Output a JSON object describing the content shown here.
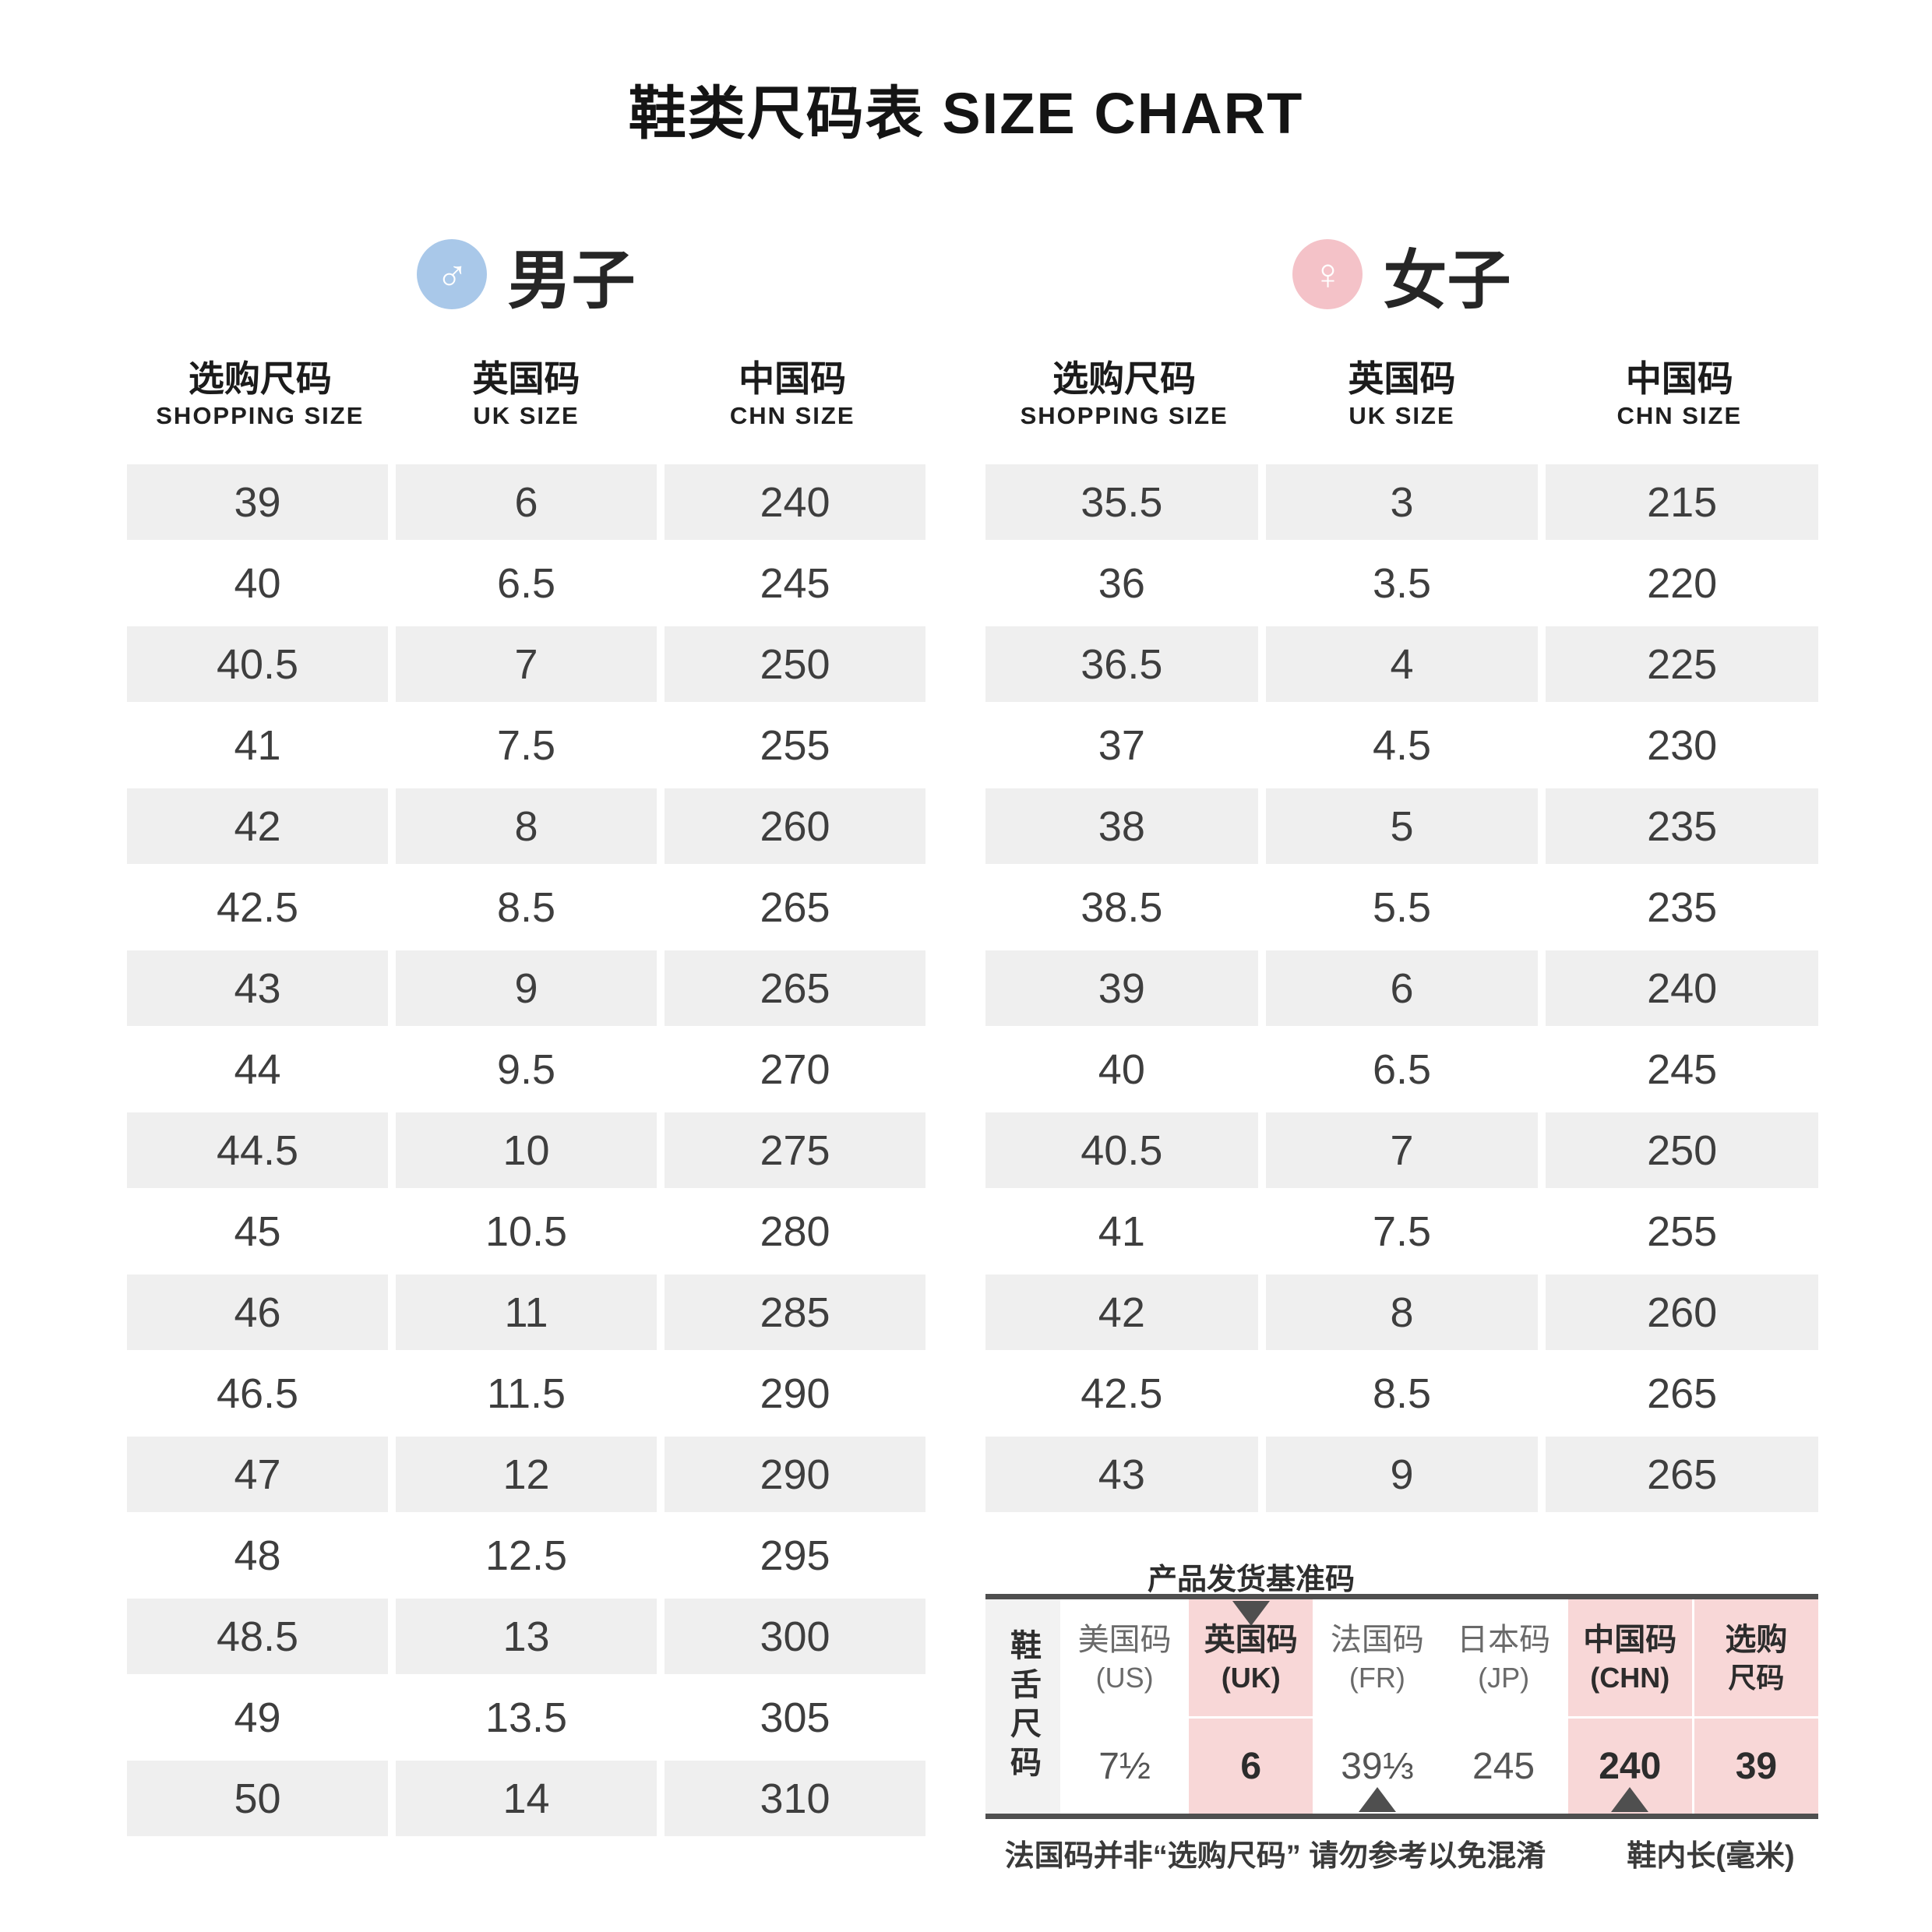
{
  "title": "鞋类尺码表 SIZE CHART",
  "colors": {
    "male_icon_bg": "#a9c8e9",
    "female_icon_bg": "#f4c2c8",
    "row_stripe": "#efefef",
    "ref_highlight_pink": "#f8d7d7",
    "ref_rowlabel_bg": "#f2f2f2",
    "rule_dark": "#4f4f4f"
  },
  "men": {
    "label": "男子",
    "symbol": "♂",
    "columns": [
      {
        "zh": "选购尺码",
        "en": "SHOPPING SIZE"
      },
      {
        "zh": "英国码",
        "en": "UK SIZE"
      },
      {
        "zh": "中国码",
        "en": "CHN SIZE"
      }
    ],
    "rows": [
      [
        "39",
        "6",
        "240"
      ],
      [
        "40",
        "6.5",
        "245"
      ],
      [
        "40.5",
        "7",
        "250"
      ],
      [
        "41",
        "7.5",
        "255"
      ],
      [
        "42",
        "8",
        "260"
      ],
      [
        "42.5",
        "8.5",
        "265"
      ],
      [
        "43",
        "9",
        "265"
      ],
      [
        "44",
        "9.5",
        "270"
      ],
      [
        "44.5",
        "10",
        "275"
      ],
      [
        "45",
        "10.5",
        "280"
      ],
      [
        "46",
        "11",
        "285"
      ],
      [
        "46.5",
        "11.5",
        "290"
      ],
      [
        "47",
        "12",
        "290"
      ],
      [
        "48",
        "12.5",
        "295"
      ],
      [
        "48.5",
        "13",
        "300"
      ],
      [
        "49",
        "13.5",
        "305"
      ],
      [
        "50",
        "14",
        "310"
      ]
    ]
  },
  "women": {
    "label": "女子",
    "symbol": "♀",
    "columns": [
      {
        "zh": "选购尺码",
        "en": "SHOPPING SIZE"
      },
      {
        "zh": "英国码",
        "en": "UK SIZE"
      },
      {
        "zh": "中国码",
        "en": "CHN SIZE"
      }
    ],
    "rows": [
      [
        "35.5",
        "3",
        "215"
      ],
      [
        "36",
        "3.5",
        "220"
      ],
      [
        "36.5",
        "4",
        "225"
      ],
      [
        "37",
        "4.5",
        "230"
      ],
      [
        "38",
        "5",
        "235"
      ],
      [
        "38.5",
        "5.5",
        "235"
      ],
      [
        "39",
        "6",
        "240"
      ],
      [
        "40",
        "6.5",
        "245"
      ],
      [
        "40.5",
        "7",
        "250"
      ],
      [
        "41",
        "7.5",
        "255"
      ],
      [
        "42",
        "8",
        "260"
      ],
      [
        "42.5",
        "8.5",
        "265"
      ],
      [
        "43",
        "9",
        "265"
      ]
    ]
  },
  "reference": {
    "pointer_label": "产品发货基准码",
    "row_label": "鞋舌尺码",
    "columns": [
      {
        "line1": "美国码",
        "line2": "(US)",
        "value": "7½",
        "highlight": false
      },
      {
        "line1": "英国码",
        "line2": "(UK)",
        "value": "6",
        "highlight": true
      },
      {
        "line1": "法国码",
        "line2": "(FR)",
        "value": "39⅓",
        "highlight": false
      },
      {
        "line1": "日本码",
        "line2": "(JP)",
        "value": "245",
        "highlight": false
      },
      {
        "line1": "中国码",
        "line2": "(CHN)",
        "value": "240",
        "highlight": true
      },
      {
        "line1": "选购",
        "line2": "尺码",
        "value": "39",
        "highlight": true
      }
    ],
    "footnote_left": "法国码并非“选购尺码” 请勿参考以免混淆",
    "footnote_right": "鞋内长(毫米)"
  }
}
